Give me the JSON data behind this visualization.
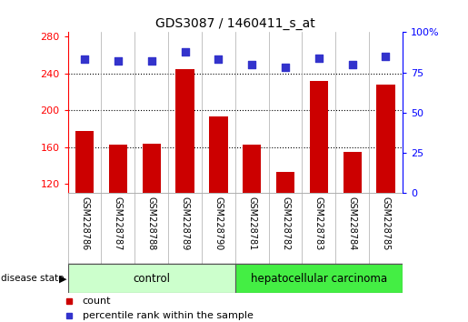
{
  "title": "GDS3087 / 1460411_s_at",
  "samples": [
    "GSM228786",
    "GSM228787",
    "GSM228788",
    "GSM228789",
    "GSM228790",
    "GSM228781",
    "GSM228782",
    "GSM228783",
    "GSM228784",
    "GSM228785"
  ],
  "counts": [
    178,
    163,
    164,
    245,
    193,
    163,
    133,
    232,
    155,
    228
  ],
  "percentiles": [
    83,
    82,
    82,
    88,
    83,
    80,
    78,
    84,
    80,
    85
  ],
  "groups": [
    "control",
    "control",
    "control",
    "control",
    "control",
    "hepatocellular carcinoma",
    "hepatocellular carcinoma",
    "hepatocellular carcinoma",
    "hepatocellular carcinoma",
    "hepatocellular carcinoma"
  ],
  "bar_color": "#cc0000",
  "dot_color": "#3333cc",
  "ylim_left": [
    110,
    285
  ],
  "yticks_left": [
    120,
    160,
    200,
    240,
    280
  ],
  "ylim_right": [
    0,
    100
  ],
  "yticks_right": [
    0,
    25,
    50,
    75,
    100
  ],
  "control_color": "#ccffcc",
  "carcinoma_color": "#44ee44",
  "label_bg_color": "#d8d8d8",
  "bar_width": 0.55,
  "dot_size": 35,
  "n_control": 5,
  "n_carcinoma": 5
}
